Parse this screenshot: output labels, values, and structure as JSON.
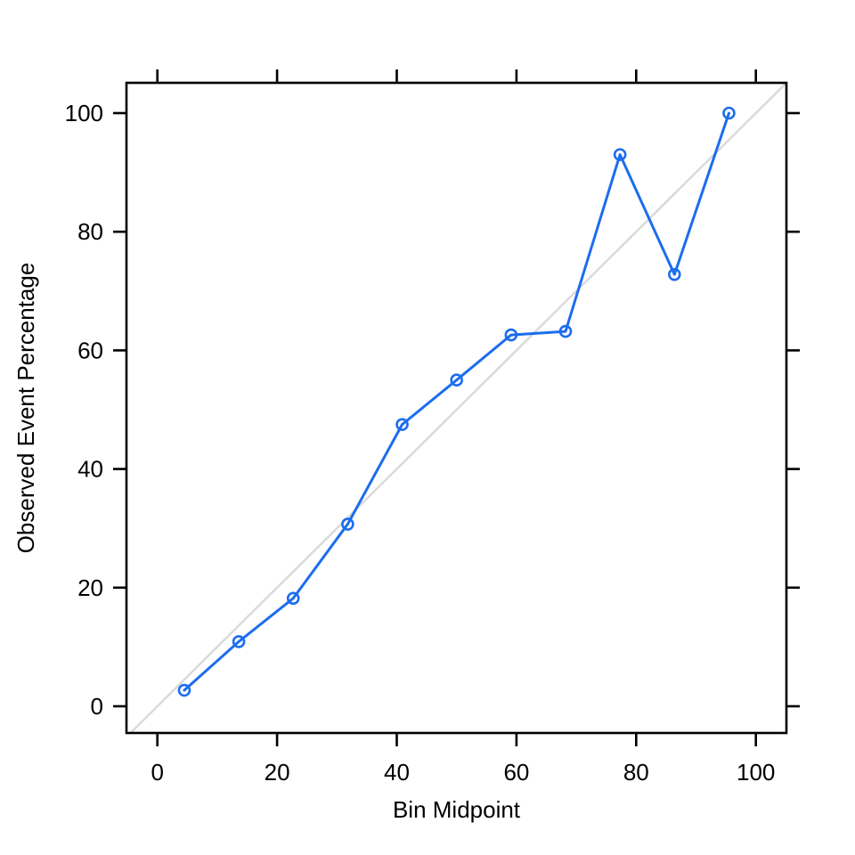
{
  "chart_data": {
    "type": "line",
    "title": "",
    "xlabel": "Bin Midpoint",
    "ylabel": "Observed Event Percentage",
    "xlim": [
      -5.2,
      105.1
    ],
    "ylim": [
      -4.5,
      105.1
    ],
    "xticks": [
      "0",
      "20",
      "40",
      "60",
      "80",
      "100"
    ],
    "xtick_values": [
      0,
      20,
      40,
      60,
      80,
      100
    ],
    "yticks": [
      "0",
      "20",
      "40",
      "60",
      "80",
      "100"
    ],
    "ytick_values": [
      0,
      20,
      40,
      60,
      80,
      100
    ],
    "grid": false,
    "legend": "none",
    "series": [
      {
        "name": "observed_event_percentage",
        "marker": "open-circle",
        "color": "#1C6DEE",
        "x": [
          4.5,
          13.6,
          22.7,
          31.8,
          40.9,
          50.0,
          59.1,
          68.2,
          77.3,
          86.4,
          95.5
        ],
        "y": [
          2.7,
          10.9,
          18.2,
          30.7,
          47.5,
          55.0,
          62.6,
          63.2,
          93.0,
          72.8,
          100.0
        ]
      }
    ],
    "reference_line": {
      "name": "identity_line",
      "slope": 1,
      "intercept": 0,
      "color": "#DADADA"
    }
  },
  "colors": {
    "background": "#FFFFFF",
    "axis": "#000000",
    "tick_label": "#000000",
    "series_blue": "#1C6DEE",
    "reference_gray": "#DADADA"
  }
}
